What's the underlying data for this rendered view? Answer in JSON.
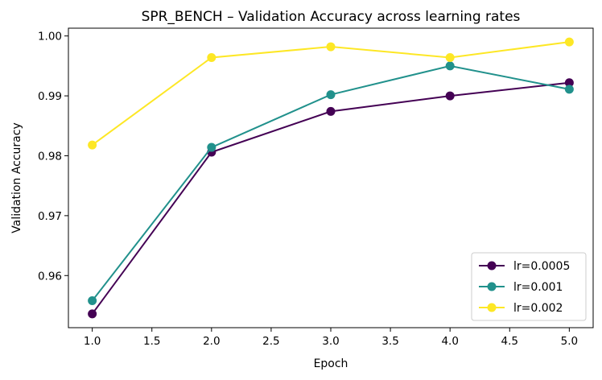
{
  "chart_data": {
    "type": "line",
    "title": "SPR_BENCH – Validation Accuracy across learning rates",
    "xlabel": "Epoch",
    "ylabel": "Validation Accuracy",
    "x": [
      1,
      2,
      3,
      4,
      5
    ],
    "xlim": [
      0.8,
      5.2
    ],
    "ylim": [
      0.9513,
      1.0013
    ],
    "x_ticks": [
      1.0,
      1.5,
      2.0,
      2.5,
      3.0,
      3.5,
      4.0,
      4.5,
      5.0
    ],
    "x_tick_labels": [
      "1.0",
      "1.5",
      "2.0",
      "2.5",
      "3.0",
      "3.5",
      "4.0",
      "4.5",
      "5.0"
    ],
    "y_ticks": [
      0.96,
      0.97,
      0.98,
      0.99,
      1.0
    ],
    "y_tick_labels": [
      "0.96",
      "0.97",
      "0.98",
      "0.99",
      "1.00"
    ],
    "grid": false,
    "legend_position": "bottom-right",
    "series": [
      {
        "name": "lr=0.0005",
        "color": "#440154",
        "values": [
          0.9536,
          0.9806,
          0.9874,
          0.99,
          0.9922
        ]
      },
      {
        "name": "lr=0.001",
        "color": "#21918c",
        "values": [
          0.9558,
          0.9814,
          0.9902,
          0.995,
          0.9911
        ]
      },
      {
        "name": "lr=0.002",
        "color": "#fde725",
        "values": [
          0.9818,
          0.9964,
          0.9982,
          0.9964,
          0.999
        ]
      }
    ]
  }
}
